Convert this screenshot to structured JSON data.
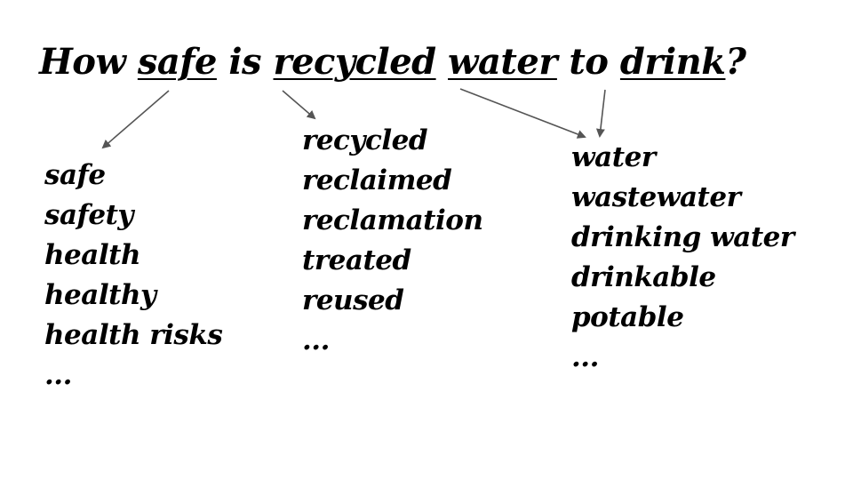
{
  "title": {
    "w1": "How ",
    "w2": "safe",
    "w3": " is ",
    "w4": "recycled",
    "w5": " ",
    "w6": "water",
    "w7": " to ",
    "w8": "drink",
    "w9": "?"
  },
  "columns": {
    "safe": [
      "safe",
      "safety",
      "health",
      "healthy",
      "health risks",
      "..."
    ],
    "recycled": [
      "recycled",
      "reclaimed",
      "reclamation",
      "treated",
      "reused",
      "..."
    ],
    "water": [
      "water",
      "wastewater",
      "drinking water",
      "drinkable",
      "potable",
      "..."
    ]
  },
  "colors": {
    "text": "#000000",
    "arrow": "#555555",
    "background": "#ffffff"
  }
}
